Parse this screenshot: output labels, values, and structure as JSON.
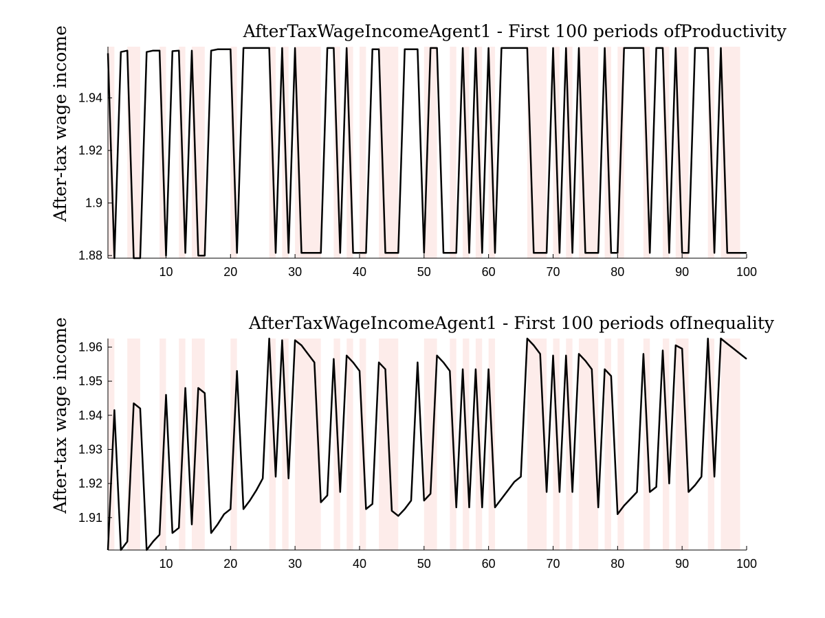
{
  "chart_data": [
    {
      "type": "line",
      "title": "AfterTaxWageIncomeAgent1 - First 100 periods ofProductivity",
      "xlabel": "",
      "ylabel": "After-tax wage income",
      "xlim": [
        1,
        100
      ],
      "ylim": [
        1.879,
        1.9595
      ],
      "xticks": [
        10,
        20,
        30,
        40,
        50,
        60,
        70,
        80,
        90,
        100
      ],
      "yticks": [
        1.88,
        1.9,
        1.92,
        1.94
      ],
      "ytick_labels": [
        "1.88",
        "1.9",
        "1.92",
        "1.94"
      ],
      "shading": "recession-style bands, light pink",
      "shaded_intervals": [
        [
          1,
          2
        ],
        [
          4,
          6
        ],
        [
          9,
          10
        ],
        [
          12,
          13
        ],
        [
          14,
          16
        ],
        [
          20,
          21
        ],
        [
          26,
          27
        ],
        [
          28,
          29
        ],
        [
          30,
          34
        ],
        [
          36,
          37
        ],
        [
          38,
          39
        ],
        [
          40,
          41
        ],
        [
          43,
          46
        ],
        [
          50,
          52
        ],
        [
          54,
          55
        ],
        [
          56,
          57
        ],
        [
          58,
          59
        ],
        [
          60,
          61
        ],
        [
          66,
          69
        ],
        [
          70,
          71
        ],
        [
          72,
          73
        ],
        [
          74,
          77
        ],
        [
          78,
          79
        ],
        [
          80,
          81
        ],
        [
          84,
          85
        ],
        [
          87,
          88
        ],
        [
          89,
          91
        ],
        [
          94,
          95
        ],
        [
          96,
          99
        ]
      ],
      "series": [
        {
          "x": [
            1,
            2,
            3,
            4,
            5,
            6,
            7,
            8,
            9,
            10,
            11,
            12,
            13,
            14,
            15,
            16,
            17,
            18,
            19,
            20,
            21,
            22,
            23,
            24,
            25,
            26,
            27,
            28,
            29,
            30,
            31,
            32,
            33,
            34,
            35,
            36,
            37,
            38,
            39,
            40,
            41,
            42,
            43,
            44,
            45,
            46,
            47,
            48,
            49,
            50,
            51,
            52,
            53,
            54,
            55,
            56,
            57,
            58,
            59,
            60,
            61,
            62,
            63,
            64,
            65,
            66,
            67,
            68,
            69,
            70,
            71,
            72,
            73,
            74,
            75,
            76,
            77,
            78,
            79,
            80,
            81,
            82,
            83,
            84,
            85,
            86,
            87,
            88,
            89,
            90,
            91,
            92,
            93,
            94,
            95,
            96,
            97,
            98,
            99,
            100
          ],
          "values": [
            1.957,
            1.879,
            1.9575,
            1.958,
            1.879,
            1.879,
            1.9575,
            1.958,
            1.958,
            1.88,
            1.9578,
            1.958,
            1.881,
            1.958,
            1.88,
            1.88,
            1.958,
            1.9585,
            1.9585,
            1.9585,
            1.881,
            1.959,
            1.959,
            1.959,
            1.959,
            1.959,
            1.881,
            1.959,
            1.881,
            1.959,
            1.881,
            1.881,
            1.881,
            1.881,
            1.959,
            1.959,
            1.881,
            1.959,
            1.881,
            1.881,
            1.881,
            1.9585,
            1.9585,
            1.881,
            1.881,
            1.881,
            1.9585,
            1.9585,
            1.9585,
            1.881,
            1.959,
            1.959,
            1.881,
            1.881,
            1.881,
            1.959,
            1.881,
            1.959,
            1.881,
            1.959,
            1.881,
            1.959,
            1.959,
            1.959,
            1.959,
            1.959,
            1.881,
            1.881,
            1.881,
            1.959,
            1.881,
            1.959,
            1.881,
            1.959,
            1.881,
            1.881,
            1.881,
            1.959,
            1.881,
            1.881,
            1.959,
            1.959,
            1.959,
            1.959,
            1.881,
            1.959,
            1.959,
            1.881,
            1.959,
            1.881,
            1.881,
            1.959,
            1.959,
            1.959,
            1.881,
            1.959,
            1.881,
            1.881,
            1.881,
            1.881
          ]
        }
      ]
    },
    {
      "type": "line",
      "title": "AfterTaxWageIncomeAgent1 - First 100 periods ofInequality",
      "xlabel": "",
      "ylabel": "After-tax wage income",
      "xlim": [
        1,
        100
      ],
      "ylim": [
        1.9005,
        1.9625
      ],
      "xticks": [
        10,
        20,
        30,
        40,
        50,
        60,
        70,
        80,
        90,
        100
      ],
      "yticks": [
        1.91,
        1.92,
        1.93,
        1.94,
        1.95,
        1.96
      ],
      "ytick_labels": [
        "1.91",
        "1.92",
        "1.93",
        "1.94",
        "1.95",
        "1.96"
      ],
      "shading": "recession-style bands, light pink",
      "shaded_intervals": [
        [
          1,
          2
        ],
        [
          4,
          6
        ],
        [
          9,
          10
        ],
        [
          12,
          13
        ],
        [
          14,
          16
        ],
        [
          20,
          21
        ],
        [
          26,
          27
        ],
        [
          28,
          29
        ],
        [
          30,
          34
        ],
        [
          36,
          37
        ],
        [
          38,
          39
        ],
        [
          40,
          41
        ],
        [
          43,
          46
        ],
        [
          50,
          52
        ],
        [
          54,
          55
        ],
        [
          56,
          57
        ],
        [
          58,
          59
        ],
        [
          60,
          61
        ],
        [
          66,
          69
        ],
        [
          70,
          71
        ],
        [
          72,
          73
        ],
        [
          74,
          77
        ],
        [
          78,
          79
        ],
        [
          80,
          81
        ],
        [
          84,
          85
        ],
        [
          87,
          88
        ],
        [
          89,
          91
        ],
        [
          94,
          95
        ],
        [
          96,
          99
        ]
      ],
      "series": [
        {
          "x": [
            1,
            2,
            3,
            4,
            5,
            6,
            7,
            8,
            9,
            10,
            11,
            12,
            13,
            14,
            15,
            16,
            17,
            18,
            19,
            20,
            21,
            22,
            23,
            24,
            25,
            26,
            27,
            28,
            29,
            30,
            31,
            32,
            33,
            34,
            35,
            36,
            37,
            38,
            39,
            40,
            41,
            42,
            43,
            44,
            45,
            46,
            47,
            48,
            49,
            50,
            51,
            52,
            53,
            54,
            55,
            56,
            57,
            58,
            59,
            60,
            61,
            62,
            63,
            64,
            65,
            66,
            67,
            68,
            69,
            70,
            71,
            72,
            73,
            74,
            75,
            76,
            77,
            78,
            79,
            80,
            81,
            82,
            83,
            84,
            85,
            86,
            87,
            88,
            89,
            90,
            91,
            92,
            93,
            94,
            95,
            96,
            97,
            98,
            99,
            100
          ],
          "values": [
            1.9005,
            1.9415,
            1.9005,
            1.903,
            1.9435,
            1.942,
            1.9005,
            1.903,
            1.905,
            1.946,
            1.9055,
            1.907,
            1.948,
            1.908,
            1.948,
            1.9465,
            1.9055,
            1.908,
            1.911,
            1.9125,
            1.953,
            1.9125,
            1.915,
            1.918,
            1.9215,
            1.9625,
            1.922,
            1.962,
            1.9215,
            1.962,
            1.9605,
            1.958,
            1.9555,
            1.9145,
            1.9165,
            1.9565,
            1.9175,
            1.9575,
            1.9555,
            1.953,
            1.9125,
            1.914,
            1.9555,
            1.9535,
            1.912,
            1.9105,
            1.9125,
            1.915,
            1.9555,
            1.915,
            1.917,
            1.9575,
            1.9555,
            1.953,
            1.913,
            1.9535,
            1.913,
            1.9535,
            1.913,
            1.9535,
            1.913,
            1.9155,
            1.918,
            1.9205,
            1.922,
            1.9625,
            1.9605,
            1.958,
            1.9175,
            1.9575,
            1.9175,
            1.9575,
            1.9175,
            1.958,
            1.956,
            1.9535,
            1.913,
            1.9535,
            1.9515,
            1.911,
            1.9135,
            1.9155,
            1.9175,
            1.958,
            1.9175,
            1.919,
            1.959,
            1.92,
            1.9605,
            1.9595,
            1.9175,
            1.9195,
            1.922,
            1.9625,
            1.922,
            1.9625,
            1.961,
            1.9595,
            1.958,
            1.9565
          ]
        }
      ]
    }
  ]
}
